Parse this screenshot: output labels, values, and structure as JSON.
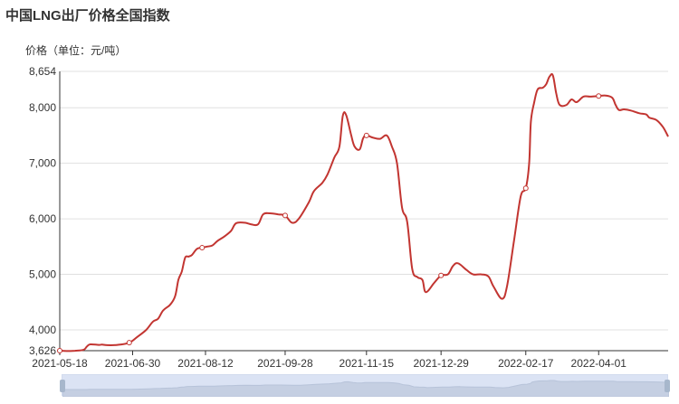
{
  "page": {
    "title": "中国LNG出厂价格全国指数",
    "unit_label": "价格（单位：元/吨）"
  },
  "chart_data": {
    "type": "line",
    "title": "中国LNG出厂价格全国指数",
    "ylabel": "价格（单位：元/吨）",
    "ylim": [
      3626,
      8654
    ],
    "y_ticks": [
      "3,626",
      "4,000",
      "5,000",
      "6,000",
      "7,000",
      "8,000",
      "8,654"
    ],
    "x_ticks": [
      "2021-05-18",
      "2021-06-30",
      "2021-08-12",
      "2021-09-28",
      "2021-11-15",
      "2021-12-29",
      "2022-02-17",
      "2022-04-01"
    ],
    "xlim": [
      "2021-05-18",
      "2022-05-12"
    ],
    "line_color": "#c23531",
    "grid": true,
    "series": [
      {
        "points": [
          [
            "2021-05-18",
            3626
          ],
          [
            "2021-05-22",
            3620
          ],
          [
            "2021-05-27",
            3625
          ],
          [
            "2021-06-01",
            3640
          ],
          [
            "2021-06-03",
            3700
          ],
          [
            "2021-06-05",
            3740
          ],
          [
            "2021-06-10",
            3730
          ],
          [
            "2021-06-12",
            3735
          ],
          [
            "2021-06-15",
            3725
          ],
          [
            "2021-06-21",
            3730
          ],
          [
            "2021-06-28",
            3770
          ],
          [
            "2021-07-03",
            3880
          ],
          [
            "2021-07-08",
            4000
          ],
          [
            "2021-07-12",
            4150
          ],
          [
            "2021-07-15",
            4200
          ],
          [
            "2021-07-18",
            4350
          ],
          [
            "2021-07-22",
            4450
          ],
          [
            "2021-07-25",
            4600
          ],
          [
            "2021-07-27",
            4900
          ],
          [
            "2021-07-29",
            5050
          ],
          [
            "2021-07-31",
            5300
          ],
          [
            "2021-08-02",
            5320
          ],
          [
            "2021-08-04",
            5350
          ],
          [
            "2021-08-07",
            5460
          ],
          [
            "2021-08-10",
            5480
          ],
          [
            "2021-08-13",
            5500
          ],
          [
            "2021-08-16",
            5520
          ],
          [
            "2021-08-19",
            5600
          ],
          [
            "2021-08-23",
            5680
          ],
          [
            "2021-08-27",
            5780
          ],
          [
            "2021-08-30",
            5920
          ],
          [
            "2021-09-04",
            5930
          ],
          [
            "2021-09-08",
            5900
          ],
          [
            "2021-09-12",
            5900
          ],
          [
            "2021-09-15",
            6080
          ],
          [
            "2021-09-19",
            6100
          ],
          [
            "2021-09-24",
            6080
          ],
          [
            "2021-09-28",
            6060
          ],
          [
            "2021-10-02",
            5930
          ],
          [
            "2021-10-06",
            6000
          ],
          [
            "2021-10-12",
            6300
          ],
          [
            "2021-10-15",
            6500
          ],
          [
            "2021-10-20",
            6650
          ],
          [
            "2021-10-23",
            6800
          ],
          [
            "2021-10-27",
            7100
          ],
          [
            "2021-10-30",
            7300
          ],
          [
            "2021-11-01",
            7850
          ],
          [
            "2021-11-03",
            7870
          ],
          [
            "2021-11-06",
            7500
          ],
          [
            "2021-11-08",
            7300
          ],
          [
            "2021-11-11",
            7250
          ],
          [
            "2021-11-13",
            7450
          ],
          [
            "2021-11-15",
            7500
          ],
          [
            "2021-11-19",
            7460
          ],
          [
            "2021-11-23",
            7440
          ],
          [
            "2021-11-27",
            7500
          ],
          [
            "2021-11-30",
            7300
          ],
          [
            "2021-12-03",
            7000
          ],
          [
            "2021-12-06",
            6200
          ],
          [
            "2021-12-09",
            5950
          ],
          [
            "2021-12-12",
            5100
          ],
          [
            "2021-12-15",
            4950
          ],
          [
            "2021-12-18",
            4900
          ],
          [
            "2021-12-20",
            4680
          ],
          [
            "2021-12-25",
            4850
          ],
          [
            "2021-12-29",
            4980
          ],
          [
            "2022-01-02",
            5000
          ],
          [
            "2022-01-05",
            5150
          ],
          [
            "2022-01-08",
            5200
          ],
          [
            "2022-01-13",
            5080
          ],
          [
            "2022-01-17",
            5000
          ],
          [
            "2022-01-22",
            5000
          ],
          [
            "2022-01-26",
            4960
          ],
          [
            "2022-01-29",
            4780
          ],
          [
            "2022-02-03",
            4560
          ],
          [
            "2022-02-06",
            4800
          ],
          [
            "2022-02-10",
            5600
          ],
          [
            "2022-02-14",
            6400
          ],
          [
            "2022-02-17",
            6550
          ],
          [
            "2022-02-19",
            7000
          ],
          [
            "2022-02-20",
            7750
          ],
          [
            "2022-02-22",
            8100
          ],
          [
            "2022-02-24",
            8330
          ],
          [
            "2022-02-27",
            8360
          ],
          [
            "2022-03-01",
            8420
          ],
          [
            "2022-03-03",
            8560
          ],
          [
            "2022-03-05",
            8580
          ],
          [
            "2022-03-07",
            8250
          ],
          [
            "2022-03-09",
            8050
          ],
          [
            "2022-03-13",
            8050
          ],
          [
            "2022-03-16",
            8150
          ],
          [
            "2022-03-19",
            8100
          ],
          [
            "2022-03-23",
            8200
          ],
          [
            "2022-03-27",
            8200
          ],
          [
            "2022-04-01",
            8210
          ],
          [
            "2022-04-05",
            8220
          ],
          [
            "2022-04-09",
            8180
          ],
          [
            "2022-04-11",
            8050
          ],
          [
            "2022-04-13",
            7960
          ],
          [
            "2022-04-16",
            7970
          ],
          [
            "2022-04-20",
            7950
          ],
          [
            "2022-04-25",
            7900
          ],
          [
            "2022-04-29",
            7880
          ],
          [
            "2022-05-01",
            7820
          ],
          [
            "2022-05-05",
            7780
          ],
          [
            "2022-05-09",
            7650
          ],
          [
            "2022-05-12",
            7480
          ]
        ]
      }
    ],
    "markers": [
      "2021-05-18",
      "2021-06-28",
      "2021-08-10",
      "2021-09-28",
      "2021-11-15",
      "2021-12-29",
      "2022-02-17",
      "2022-04-01"
    ]
  }
}
